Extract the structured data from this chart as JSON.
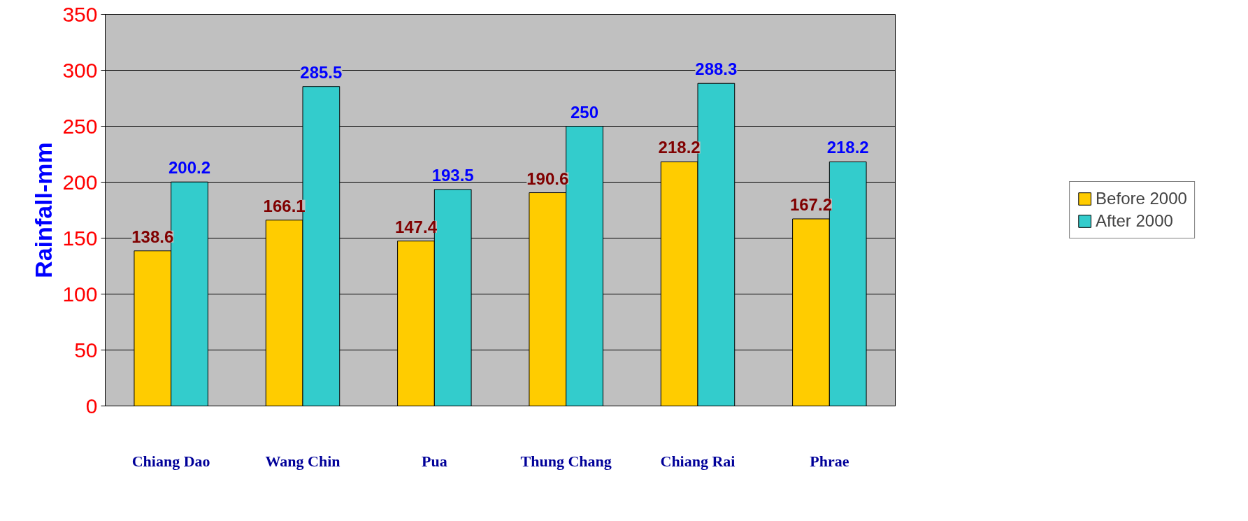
{
  "chart_data": {
    "type": "bar",
    "ylabel": "Rainfall-mm",
    "categories": [
      "Chiang Dao",
      "Wang Chin",
      "Pua",
      "Thung Chang",
      "Chiang Rai",
      "Phrae"
    ],
    "series": [
      {
        "name": "Before 2000",
        "color": "#ffcc00",
        "values": [
          138.6,
          166.1,
          147.4,
          190.6,
          218.2,
          167.2
        ]
      },
      {
        "name": "After 2000",
        "color": "#33cccc",
        "values": [
          200.2,
          285.5,
          193.5,
          250,
          288.3,
          218.2
        ]
      }
    ],
    "ylim": [
      0,
      350
    ],
    "yticks": [
      0,
      50,
      100,
      150,
      200,
      250,
      300,
      350
    ],
    "grid": "y",
    "legend": "right",
    "data_labels": true
  }
}
